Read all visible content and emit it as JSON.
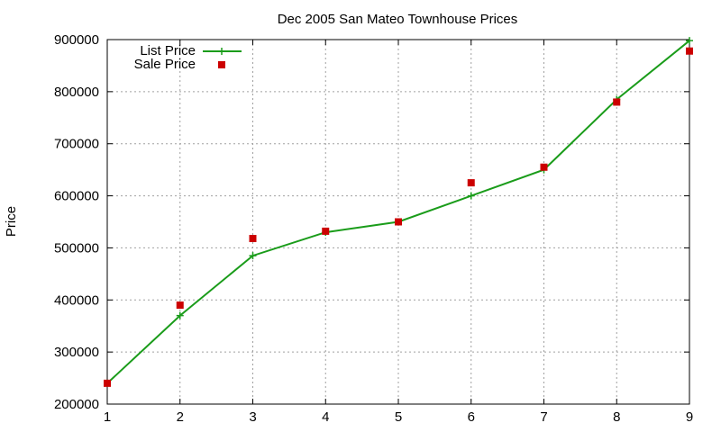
{
  "chart_data": {
    "type": "line",
    "title": "Dec 2005 San Mateo Townhouse Prices",
    "xlabel": "",
    "ylabel": "Price",
    "xlim": [
      1,
      9
    ],
    "ylim": [
      200000,
      900000
    ],
    "xticks": [
      1,
      2,
      3,
      4,
      5,
      6,
      7,
      8,
      9
    ],
    "yticks": [
      200000,
      300000,
      400000,
      500000,
      600000,
      700000,
      800000,
      900000
    ],
    "grid": true,
    "legend_position": "top-left",
    "x": [
      1,
      2,
      3,
      4,
      5,
      6,
      7,
      8,
      9
    ],
    "series": [
      {
        "name": "List Price",
        "style": "linespoints",
        "marker": "plus",
        "color": "#1a9c1a",
        "values": [
          240000,
          370000,
          485000,
          530000,
          550000,
          600000,
          650000,
          785000,
          898000
        ]
      },
      {
        "name": "Sale Price",
        "style": "points",
        "marker": "square",
        "color": "#cc0000",
        "values": [
          240000,
          390000,
          518000,
          532000,
          550000,
          625000,
          655000,
          780000,
          878000
        ]
      }
    ]
  }
}
